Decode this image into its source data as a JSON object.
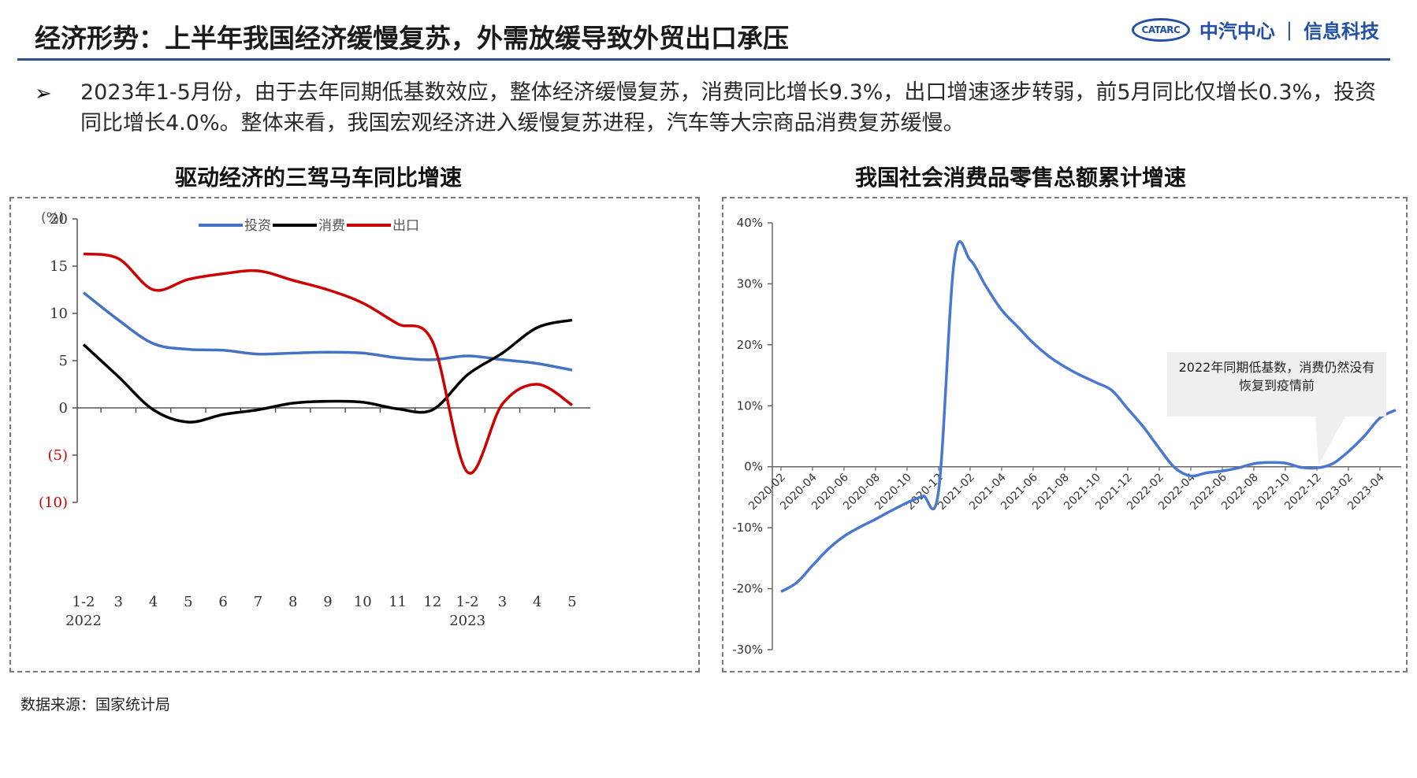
{
  "header": {
    "title": "经济形势：上半年我国经济缓慢复苏，外需放缓导致外贸出口承压",
    "brand_logo": "CATARC",
    "brand_name1": "中汽中心",
    "brand_sep": "|",
    "brand_name2": "信息科技"
  },
  "summary": {
    "bullet": "➢",
    "text": "2023年1-5月份，由于去年同期低基数效应，整体经济缓慢复苏，消费同比增长9.3%，出口增速逐步转弱，前5月同比仅增长0.3%，投资同比增长4.0%。整体来看，我国宏观经济进入缓慢复苏进程，汽车等大宗商品消费复苏缓慢。"
  },
  "chart_data": [
    {
      "type": "line",
      "title": "驱动经济的三驾马车同比增速",
      "unit_label": "(%)",
      "categories": [
        "1-2",
        "3",
        "4",
        "5",
        "6",
        "7",
        "8",
        "9",
        "10",
        "11",
        "12",
        "1-2",
        "3",
        "4",
        "5"
      ],
      "year_labels": [
        {
          "index": 0,
          "label": "2022"
        },
        {
          "index": 11,
          "label": "2023"
        }
      ],
      "y_ticks": [
        {
          "value": 20,
          "label": "20",
          "color": "#333333"
        },
        {
          "value": 15,
          "label": "15",
          "color": "#333333"
        },
        {
          "value": 10,
          "label": "10",
          "color": "#333333"
        },
        {
          "value": 5,
          "label": "5",
          "color": "#333333"
        },
        {
          "value": 0,
          "label": "0",
          "color": "#333333"
        },
        {
          "value": -5,
          "label": "(5)",
          "color": "#cc0000"
        },
        {
          "value": -10,
          "label": "(10)",
          "color": "#cc0000"
        }
      ],
      "ylim": [
        -10,
        20
      ],
      "legend": "top",
      "series": [
        {
          "name": "投资",
          "color": "#4472c4",
          "values": [
            12.2,
            9.3,
            6.8,
            6.2,
            6.1,
            5.7,
            5.8,
            5.9,
            5.8,
            5.3,
            5.1,
            5.5,
            5.1,
            4.7,
            4.0
          ]
        },
        {
          "name": "消费",
          "color": "#000000",
          "values": [
            6.7,
            3.3,
            -0.2,
            -1.5,
            -0.7,
            -0.2,
            0.5,
            0.7,
            0.6,
            -0.1,
            -0.2,
            3.5,
            5.8,
            8.5,
            9.3
          ]
        },
        {
          "name": "出口",
          "color": "#cc0000",
          "values": [
            16.3,
            15.8,
            12.5,
            13.6,
            14.2,
            14.5,
            13.5,
            12.5,
            11.1,
            8.9,
            7.0,
            -6.8,
            0.4,
            2.5,
            0.3
          ]
        }
      ]
    },
    {
      "type": "line",
      "title": "我国社会消费品零售总额累计增速",
      "categories": [
        "2020-02",
        "2020-03",
        "2020-04",
        "2020-05",
        "2020-06",
        "2020-07",
        "2020-08",
        "2020-09",
        "2020-10",
        "2020-11",
        "2020-12",
        "2021-01",
        "2021-02",
        "2021-03",
        "2021-04",
        "2021-05",
        "2021-06",
        "2021-07",
        "2021-08",
        "2021-09",
        "2021-10",
        "2021-11",
        "2021-12",
        "2022-01",
        "2022-02",
        "2022-03",
        "2022-04",
        "2022-05",
        "2022-06",
        "2022-07",
        "2022-08",
        "2022-09",
        "2022-10",
        "2022-11",
        "2022-12",
        "2023-01",
        "2023-02",
        "2023-03",
        "2023-04",
        "2023-05"
      ],
      "tick_labels": [
        "2020-02",
        "2020-04",
        "2020-06",
        "2020-08",
        "2020-10",
        "2020-12",
        "2021-02",
        "2021-04",
        "2021-06",
        "2021-08",
        "2021-10",
        "2021-12",
        "2022-02",
        "2022-04",
        "2022-06",
        "2022-08",
        "2022-10",
        "2022-12",
        "2023-02",
        "2023-04"
      ],
      "y_ticks": [
        {
          "value": 40,
          "label": "40%"
        },
        {
          "value": 30,
          "label": "30%"
        },
        {
          "value": 20,
          "label": "20%"
        },
        {
          "value": 10,
          "label": "10%"
        },
        {
          "value": 0,
          "label": "0%"
        },
        {
          "value": -10,
          "label": "-10%"
        },
        {
          "value": -20,
          "label": "-20%"
        },
        {
          "value": -30,
          "label": "-30%"
        }
      ],
      "ylim": [
        -30,
        40
      ],
      "series": [
        {
          "name": "",
          "color": "#4a78d0",
          "values": [
            -20.5,
            -19.0,
            -16.2,
            -13.5,
            -11.4,
            -9.9,
            -8.6,
            -7.2,
            -5.9,
            -4.8,
            -3.9,
            34.0,
            33.9,
            29.6,
            25.7,
            23.0,
            20.3,
            18.1,
            16.4,
            15.0,
            13.8,
            12.5,
            9.5,
            6.5,
            3.0,
            -0.2,
            -1.5,
            -1.0,
            -0.7,
            -0.2,
            0.5,
            0.7,
            0.6,
            -0.1,
            -0.2,
            0.5,
            2.5,
            5.0,
            8.0,
            9.3
          ]
        }
      ],
      "annotation": "2022年同期低基数，消费仍然没有恢复到疫情前"
    }
  ],
  "footer": {
    "source": "数据来源：国家统计局"
  }
}
